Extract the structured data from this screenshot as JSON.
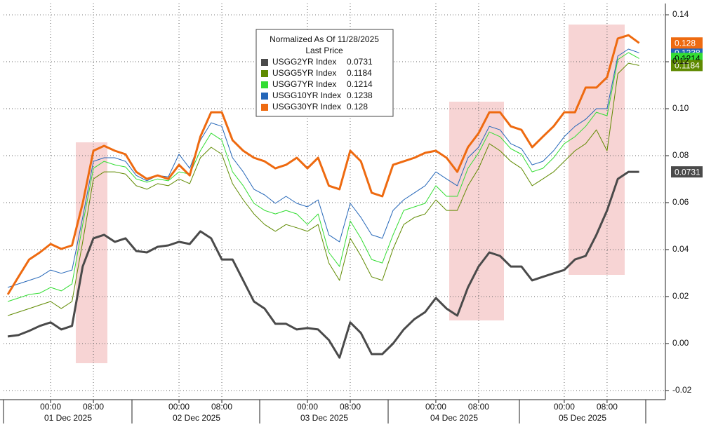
{
  "chart_data": {
    "type": "line",
    "legend_title": "Normalized As Of 11/28/2025",
    "legend_subtitle": "Last Price",
    "days": [
      "01 Dec 2025",
      "02 Dec 2025",
      "03 Dec 2025",
      "04 Dec 2025",
      "05 Dec 2025"
    ],
    "x": [
      "2025-11-30T16:00",
      "2025-11-30T18:00",
      "2025-11-30T20:00",
      "2025-11-30T22:00",
      "2025-12-01T00:00",
      "2025-12-01T02:00",
      "2025-12-01T04:00",
      "2025-12-01T06:00",
      "2025-12-01T08:00",
      "2025-12-01T10:00",
      "2025-12-01T12:00",
      "2025-12-01T14:00",
      "2025-12-01T16:00",
      "2025-12-01T18:00",
      "2025-12-01T20:00",
      "2025-12-01T22:00",
      "2025-12-02T00:00",
      "2025-12-02T02:00",
      "2025-12-02T04:00",
      "2025-12-02T06:00",
      "2025-12-02T08:00",
      "2025-12-02T10:00",
      "2025-12-02T12:00",
      "2025-12-02T14:00",
      "2025-12-02T16:00",
      "2025-12-02T18:00",
      "2025-12-02T20:00",
      "2025-12-02T22:00",
      "2025-12-03T00:00",
      "2025-12-03T02:00",
      "2025-12-03T04:00",
      "2025-12-03T06:00",
      "2025-12-03T08:00",
      "2025-12-03T10:00",
      "2025-12-03T12:00",
      "2025-12-03T14:00",
      "2025-12-03T16:00",
      "2025-12-03T18:00",
      "2025-12-03T20:00",
      "2025-12-03T22:00",
      "2025-12-04T00:00",
      "2025-12-04T02:00",
      "2025-12-04T04:00",
      "2025-12-04T06:00",
      "2025-12-04T08:00",
      "2025-12-04T10:00",
      "2025-12-04T12:00",
      "2025-12-04T14:00",
      "2025-12-04T16:00",
      "2025-12-04T18:00",
      "2025-12-04T20:00",
      "2025-12-04T22:00",
      "2025-12-05T00:00",
      "2025-12-05T02:00",
      "2025-12-05T04:00",
      "2025-12-05T06:00",
      "2025-12-05T08:00",
      "2025-12-05T10:00",
      "2025-12-05T12:00",
      "2025-12-05T14:00"
    ],
    "series": [
      {
        "name": "USGG2YR Index",
        "color": "#4a4a4a",
        "width": 3,
        "last_value": 0.0731,
        "values": [
          0.003,
          0.0036,
          0.0054,
          0.0075,
          0.009,
          0.006,
          0.0075,
          0.0328,
          0.0448,
          0.0463,
          0.0433,
          0.0448,
          0.0394,
          0.0388,
          0.0412,
          0.0418,
          0.0433,
          0.0424,
          0.0478,
          0.0448,
          0.0358,
          0.0358,
          0.0269,
          0.0179,
          0.0149,
          0.0084,
          0.0084,
          0.006,
          0.0066,
          0.006,
          0.0015,
          -0.006,
          0.009,
          0.0045,
          -0.0045,
          -0.0045,
          0,
          0.006,
          0.0104,
          0.0134,
          0.0194,
          0.0149,
          0.0119,
          0.0239,
          0.0328,
          0.0388,
          0.0373,
          0.0328,
          0.0328,
          0.0269,
          0.0284,
          0.0299,
          0.0313,
          0.0358,
          0.0373,
          0.0463,
          0.0567,
          0.0701,
          0.0731,
          0.0731
        ]
      },
      {
        "name": "USGG5YR Index",
        "color": "#5f8a00",
        "width": 1,
        "last_value": 0.1184,
        "values": [
          0.0119,
          0.0134,
          0.0149,
          0.0164,
          0.0179,
          0.0149,
          0.0179,
          0.0433,
          0.0701,
          0.0731,
          0.0731,
          0.0722,
          0.0672,
          0.0657,
          0.0681,
          0.0672,
          0.0701,
          0.0681,
          0.0791,
          0.0836,
          0.0806,
          0.0681,
          0.0612,
          0.0552,
          0.0507,
          0.0478,
          0.0507,
          0.0493,
          0.0478,
          0.0507,
          0.0343,
          0.0269,
          0.0448,
          0.0373,
          0.0284,
          0.0269,
          0.0403,
          0.0507,
          0.0537,
          0.0552,
          0.0612,
          0.0567,
          0.0567,
          0.0672,
          0.0746,
          0.0851,
          0.0821,
          0.0776,
          0.0746,
          0.0672,
          0.0701,
          0.0731,
          0.0776,
          0.0821,
          0.0851,
          0.091,
          0.0821,
          0.1149,
          0.1194,
          0.1184
        ]
      },
      {
        "name": "USGG7YR Index",
        "color": "#33dd33",
        "width": 1,
        "last_value": 0.1214,
        "values": [
          0.0179,
          0.0194,
          0.0209,
          0.0215,
          0.0239,
          0.0224,
          0.0254,
          0.0507,
          0.0746,
          0.0776,
          0.0761,
          0.0752,
          0.0701,
          0.0687,
          0.0701,
          0.0693,
          0.0731,
          0.0722,
          0.0821,
          0.0896,
          0.0866,
          0.0731,
          0.0672,
          0.0597,
          0.0567,
          0.0552,
          0.0567,
          0.0552,
          0.0507,
          0.0552,
          0.0388,
          0.0328,
          0.0522,
          0.0448,
          0.0358,
          0.0343,
          0.0463,
          0.0567,
          0.0582,
          0.0597,
          0.0672,
          0.0627,
          0.0627,
          0.0746,
          0.0812,
          0.0901,
          0.0881,
          0.083,
          0.0806,
          0.0731,
          0.0746,
          0.0791,
          0.0851,
          0.0881,
          0.0925,
          0.0985,
          0.097,
          0.1209,
          0.1239,
          0.1214
        ]
      },
      {
        "name": "USGG10YR Index",
        "color": "#2466b8",
        "width": 1,
        "last_value": 0.1238,
        "values": [
          0.0239,
          0.0254,
          0.0269,
          0.0284,
          0.0313,
          0.0299,
          0.0313,
          0.0537,
          0.0776,
          0.0791,
          0.0791,
          0.0776,
          0.0716,
          0.0693,
          0.0716,
          0.071,
          0.0806,
          0.0746,
          0.0866,
          0.094,
          0.0925,
          0.0791,
          0.0731,
          0.0657,
          0.0633,
          0.0597,
          0.0627,
          0.0597,
          0.0582,
          0.0612,
          0.0463,
          0.0433,
          0.0597,
          0.0537,
          0.0463,
          0.0448,
          0.0567,
          0.0612,
          0.0642,
          0.0672,
          0.0731,
          0.0701,
          0.0672,
          0.0791,
          0.0836,
          0.0925,
          0.091,
          0.0851,
          0.083,
          0.0761,
          0.0776,
          0.0821,
          0.0881,
          0.0925,
          0.0955,
          0.1,
          0.1,
          0.1224,
          0.1254,
          0.1238
        ]
      },
      {
        "name": "USGG30YR Index",
        "color": "#ee6a10",
        "width": 3,
        "last_value": 0.128,
        "values": [
          0.0209,
          0.0284,
          0.0358,
          0.0388,
          0.0424,
          0.0403,
          0.0418,
          0.0597,
          0.0821,
          0.0842,
          0.0821,
          0.0806,
          0.0731,
          0.0701,
          0.0716,
          0.0701,
          0.0761,
          0.0716,
          0.0881,
          0.0985,
          0.0985,
          0.0866,
          0.0821,
          0.0791,
          0.0776,
          0.0746,
          0.0761,
          0.0791,
          0.0746,
          0.0791,
          0.0672,
          0.0657,
          0.0821,
          0.0776,
          0.0642,
          0.0627,
          0.0761,
          0.0776,
          0.0791,
          0.0812,
          0.0821,
          0.0791,
          0.0731,
          0.0836,
          0.0896,
          0.0985,
          0.0985,
          0.0925,
          0.091,
          0.0836,
          0.0881,
          0.0925,
          0.0985,
          0.0985,
          0.109,
          0.109,
          0.1134,
          0.1299,
          0.1313,
          0.128
        ]
      }
    ],
    "xlim": [
      "2025-11-30T15:12",
      "2025-12-05T18:54"
    ],
    "xticks": [
      {
        "value": "2025-12-01T00:00",
        "label": "00:00"
      },
      {
        "value": "2025-12-01T08:00",
        "label": "08:00"
      },
      {
        "value": "2025-12-02T00:00",
        "label": "00:00"
      },
      {
        "value": "2025-12-02T08:00",
        "label": "08:00"
      },
      {
        "value": "2025-12-03T00:00",
        "label": "00:00"
      },
      {
        "value": "2025-12-03T08:00",
        "label": "08:00"
      },
      {
        "value": "2025-12-04T00:00",
        "label": "00:00"
      },
      {
        "value": "2025-12-04T08:00",
        "label": "08:00"
      },
      {
        "value": "2025-12-05T00:00",
        "label": "00:00"
      },
      {
        "value": "2025-12-05T08:00",
        "label": "08:00"
      }
    ],
    "ylim": [
      -0.0233,
      0.1448
    ],
    "yticks": [
      0.14,
      0.12,
      {
        "value": 0.1,
        "label": "0.10"
      },
      0.08,
      0.06,
      0.04,
      0.02,
      {
        "value": 0,
        "label": "0.00"
      },
      -0.02
    ],
    "grid": true
  }
}
